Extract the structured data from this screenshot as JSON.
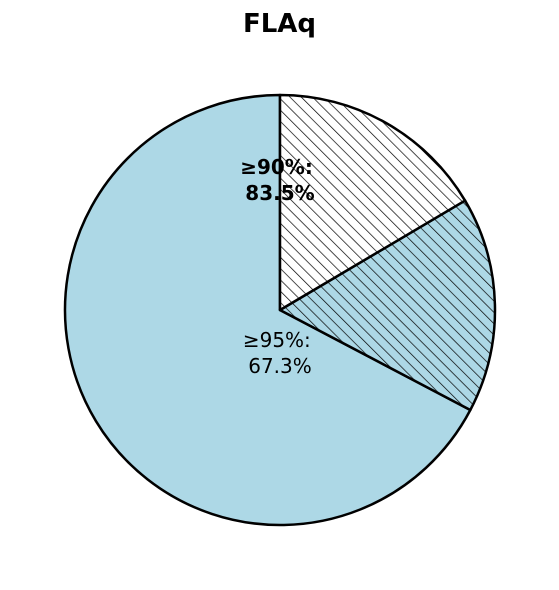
{
  "chart_data": {
    "type": "pie",
    "title": "FLAq",
    "start_angle_deg": 90,
    "direction": "counterclockwise",
    "slices": [
      {
        "value": 67.3,
        "fill": "#ADD8E6",
        "hatch": false,
        "label_line1": "≥95%:",
        "label_line2": "67.3%",
        "label_bold": false
      },
      {
        "value": 16.2,
        "fill": "#ADD8E6",
        "hatch": true,
        "label_line1": "",
        "label_line2": "",
        "label_bold": false
      },
      {
        "value": 16.5,
        "fill": "#FFFFFF",
        "hatch": true,
        "label_line1": "",
        "label_line2": "",
        "label_bold": false
      }
    ],
    "annotations": [
      {
        "line1": "≥90%:",
        "line2": "83.5%",
        "bold": true
      }
    ],
    "edge_color": "#000000",
    "hatch_color": "#000000"
  }
}
